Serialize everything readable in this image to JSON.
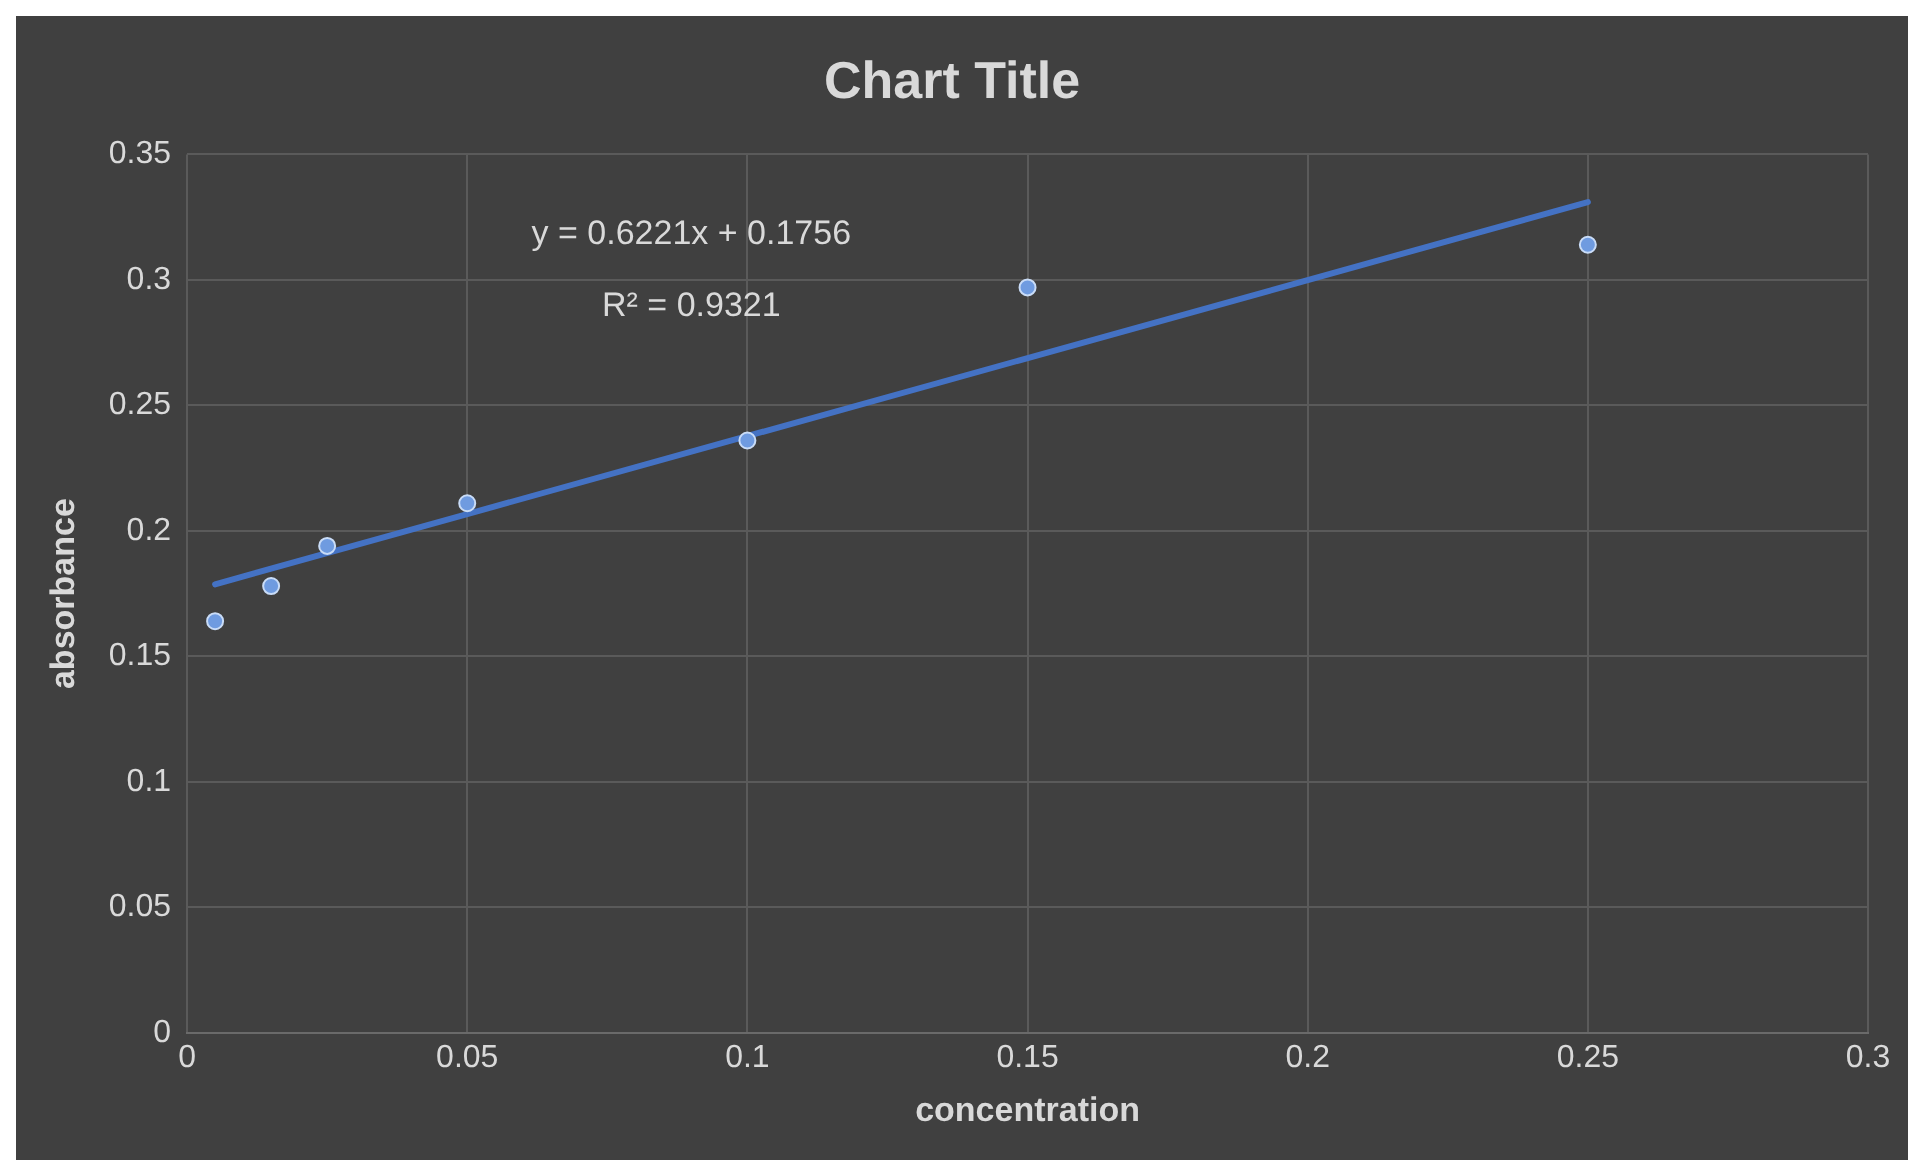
{
  "chart_data": {
    "type": "scatter",
    "title": "Chart Title",
    "xlabel": "concentration",
    "ylabel": "absorbance",
    "xlim": [
      0,
      0.3
    ],
    "xticks": [
      0,
      0.05,
      0.1,
      0.15,
      0.2,
      0.25,
      0.3
    ],
    "ylim": [
      0,
      0.35
    ],
    "yticks": [
      0,
      0.05,
      0.1,
      0.15,
      0.2,
      0.25,
      0.3,
      0.35
    ],
    "grid": true,
    "legend": false,
    "series": [
      {
        "color": "#6f9be0",
        "marker": "circle",
        "x": [
          0.005,
          0.015,
          0.025,
          0.05,
          0.1,
          0.15,
          0.25
        ],
        "values": [
          0.164,
          0.178,
          0.194,
          0.211,
          0.236,
          0.297,
          0.314
        ]
      },
      {
        "type": "line",
        "color": "#4472c4",
        "marker": "none",
        "line_style": "solid",
        "x": [
          0.005,
          0.25
        ],
        "values": [
          0.1787,
          0.331
        ]
      }
    ],
    "annotations": [
      "y = 0.6221x + 0.1756",
      "R² = 0.9321"
    ]
  }
}
